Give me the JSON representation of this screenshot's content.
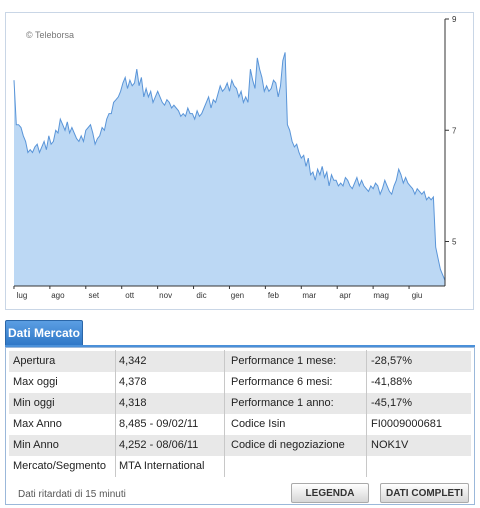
{
  "chart": {
    "watermark": "© Teleborsa",
    "colors": {
      "fill": "#bcd8f4",
      "line": "#5a95d8",
      "axis": "#333333"
    },
    "chart_data": {
      "type": "area",
      "x_labels": [
        "lug",
        "ago",
        "set",
        "ott",
        "nov",
        "dic",
        "gen",
        "feb",
        "mar",
        "apr",
        "mag",
        "giu"
      ],
      "y_ticks": [
        9,
        7,
        5
      ],
      "ylim": [
        4.2,
        9
      ],
      "grid": false,
      "values": [
        7.9,
        7.1,
        7.1,
        7.05,
        6.9,
        6.8,
        6.6,
        6.65,
        6.6,
        6.7,
        6.75,
        6.6,
        6.7,
        6.8,
        6.65,
        6.9,
        6.75,
        6.8,
        7.0,
        6.95,
        7.2,
        7.1,
        7.0,
        7.15,
        6.95,
        7.05,
        6.95,
        6.85,
        6.8,
        6.9,
        6.8,
        7.0,
        7.05,
        7.1,
        6.95,
        6.75,
        6.85,
        6.9,
        7.05,
        7.0,
        7.2,
        7.3,
        7.3,
        7.5,
        7.55,
        7.6,
        7.7,
        7.85,
        7.95,
        7.75,
        7.9,
        7.8,
        7.85,
        8.1,
        7.8,
        7.95,
        7.6,
        7.75,
        7.6,
        7.7,
        7.5,
        7.6,
        7.7,
        7.6,
        7.5,
        7.45,
        7.55,
        7.5,
        7.4,
        7.45,
        7.4,
        7.35,
        7.25,
        7.3,
        7.25,
        7.4,
        7.3,
        7.3,
        7.2,
        7.35,
        7.25,
        7.3,
        7.4,
        7.5,
        7.6,
        7.4,
        7.55,
        7.5,
        7.65,
        7.8,
        7.7,
        7.75,
        7.85,
        7.7,
        7.9,
        7.8,
        7.75,
        7.6,
        7.7,
        7.5,
        7.6,
        7.5,
        8.1,
        7.9,
        7.75,
        8.3,
        8.1,
        7.95,
        7.7,
        7.8,
        7.7,
        7.75,
        7.9,
        7.85,
        7.6,
        7.8,
        8.25,
        8.4,
        7.1,
        7.0,
        6.8,
        6.7,
        6.75,
        6.6,
        6.5,
        6.55,
        6.35,
        6.5,
        6.2,
        6.25,
        6.1,
        6.3,
        6.2,
        6.35,
        6.15,
        6.25,
        6.0,
        6.2,
        6.1,
        6.1,
        6.0,
        6.05,
        6.0,
        6.15,
        6.1,
        6.0,
        5.95,
        6.05,
        6.15,
        6.0,
        6.1,
        6.0,
        5.95,
        5.9,
        6.0,
        5.95,
        6.05,
        6.0,
        5.85,
        5.95,
        6.1,
        6.0,
        5.9,
        5.85,
        6.0,
        6.1,
        6.3,
        6.2,
        6.05,
        6.15,
        6.05,
        6.0,
        5.95,
        5.85,
        5.95,
        5.9,
        5.85,
        5.9,
        5.75,
        5.8,
        5.75,
        5.8,
        4.9,
        4.7,
        4.5,
        4.4,
        4.3
      ]
    }
  },
  "tab": {
    "label": "Dati Mercato"
  },
  "table": {
    "rows": [
      [
        "Apertura",
        "4,342",
        "Performance 1 mese:",
        "-28,57%"
      ],
      [
        "Max oggi",
        "4,378",
        "Performance 6 mesi:",
        "-41,88%"
      ],
      [
        "Min oggi",
        "4,318",
        "Performance 1 anno:",
        "-45,17%"
      ],
      [
        "Max Anno",
        "8,485 - 09/02/11",
        "Codice Isin",
        "FI0009000681"
      ],
      [
        "Min Anno",
        "4,252 - 08/06/11",
        "Codice di negoziazione",
        "NOK1V"
      ],
      [
        "Mercato/Segmento",
        "MTA International",
        "",
        ""
      ]
    ]
  },
  "footer": {
    "note": "Dati ritardati di 15 minuti",
    "legend_button": "LEGENDA",
    "full_data_button": "DATI COMPLETI"
  }
}
